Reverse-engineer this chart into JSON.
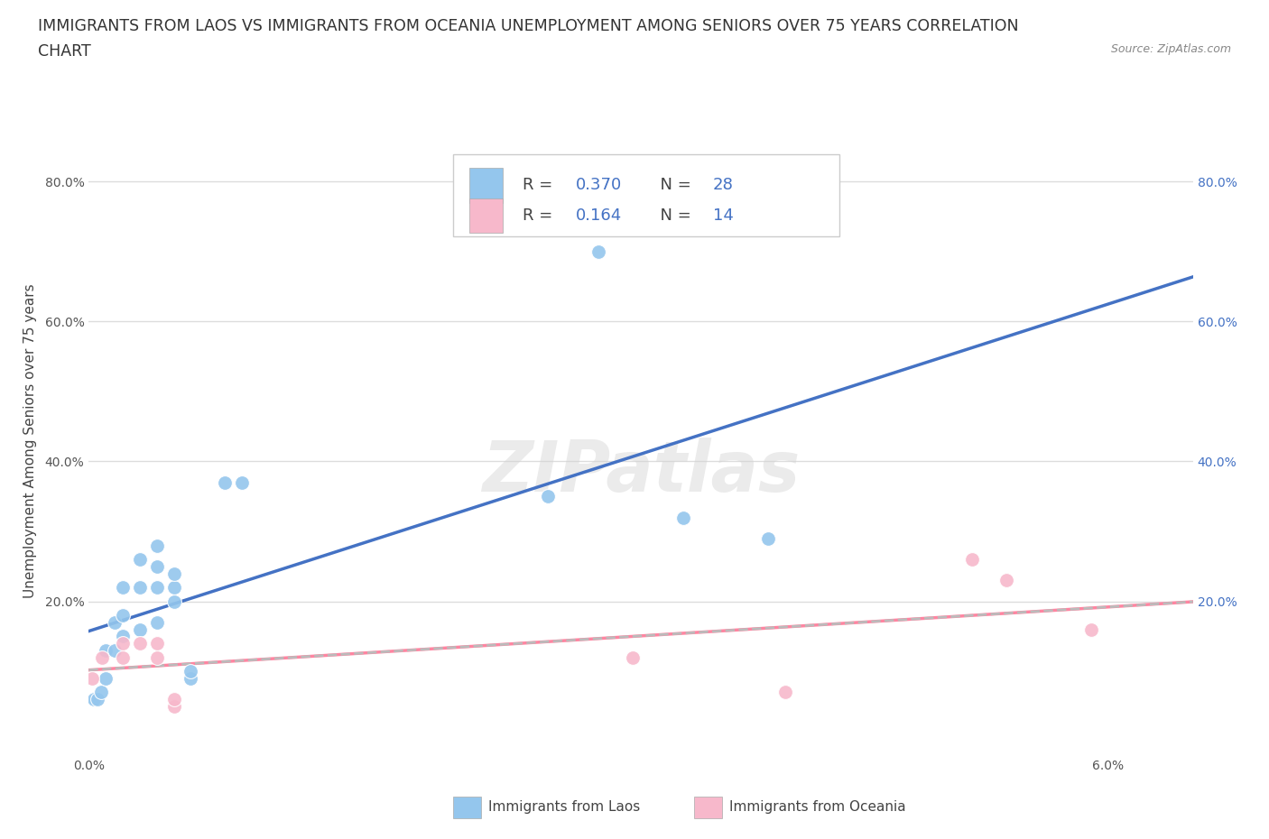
{
  "title_line1": "IMMIGRANTS FROM LAOS VS IMMIGRANTS FROM OCEANIA UNEMPLOYMENT AMONG SENIORS OVER 75 YEARS CORRELATION",
  "title_line2": "CHART",
  "source_text": "Source: ZipAtlas.com",
  "ylabel": "Unemployment Among Seniors over 75 years",
  "xlim": [
    0.0,
    0.065
  ],
  "ylim": [
    -0.02,
    0.88
  ],
  "xtick_positions": [
    0.0,
    0.01,
    0.02,
    0.03,
    0.04,
    0.05,
    0.06
  ],
  "xticklabels": [
    "0.0%",
    "",
    "",
    "",
    "",
    "",
    "6.0%"
  ],
  "ytick_positions": [
    0.0,
    0.2,
    0.4,
    0.6,
    0.8
  ],
  "yticklabels_left": [
    "",
    "20.0%",
    "40.0%",
    "60.0%",
    "80.0%"
  ],
  "yticklabels_right": [
    "",
    "20.0%",
    "40.0%",
    "60.0%",
    "80.0%"
  ],
  "laos_color": "#94C6ED",
  "oceania_color": "#F7B8CB",
  "laos_line_color": "#4472C4",
  "oceania_line_color": "#FF85A1",
  "dashed_line_color": "#BBBBBB",
  "background_color": "#FFFFFF",
  "grid_color": "#DDDDDD",
  "watermark": "ZIPatlas",
  "legend_R_laos": "0.370",
  "legend_N_laos": "28",
  "legend_R_oceania": "0.164",
  "legend_N_oceania": "14",
  "laos_x": [
    0.0003,
    0.0005,
    0.0007,
    0.001,
    0.001,
    0.0015,
    0.0015,
    0.002,
    0.002,
    0.002,
    0.003,
    0.003,
    0.003,
    0.004,
    0.004,
    0.004,
    0.004,
    0.005,
    0.005,
    0.005,
    0.006,
    0.006,
    0.008,
    0.009,
    0.027,
    0.03,
    0.035,
    0.04
  ],
  "laos_y": [
    0.06,
    0.06,
    0.07,
    0.09,
    0.13,
    0.13,
    0.17,
    0.15,
    0.18,
    0.22,
    0.16,
    0.22,
    0.26,
    0.17,
    0.22,
    0.25,
    0.28,
    0.2,
    0.22,
    0.24,
    0.09,
    0.1,
    0.37,
    0.37,
    0.35,
    0.7,
    0.32,
    0.29
  ],
  "oceania_x": [
    0.0002,
    0.0008,
    0.002,
    0.002,
    0.003,
    0.004,
    0.004,
    0.005,
    0.005,
    0.032,
    0.041,
    0.052,
    0.054,
    0.059
  ],
  "oceania_y": [
    0.09,
    0.12,
    0.12,
    0.14,
    0.14,
    0.14,
    0.12,
    0.05,
    0.06,
    0.12,
    0.07,
    0.26,
    0.23,
    0.16
  ],
  "title_fontsize": 12.5,
  "ylabel_fontsize": 11,
  "tick_fontsize": 10,
  "legend_fontsize": 13
}
